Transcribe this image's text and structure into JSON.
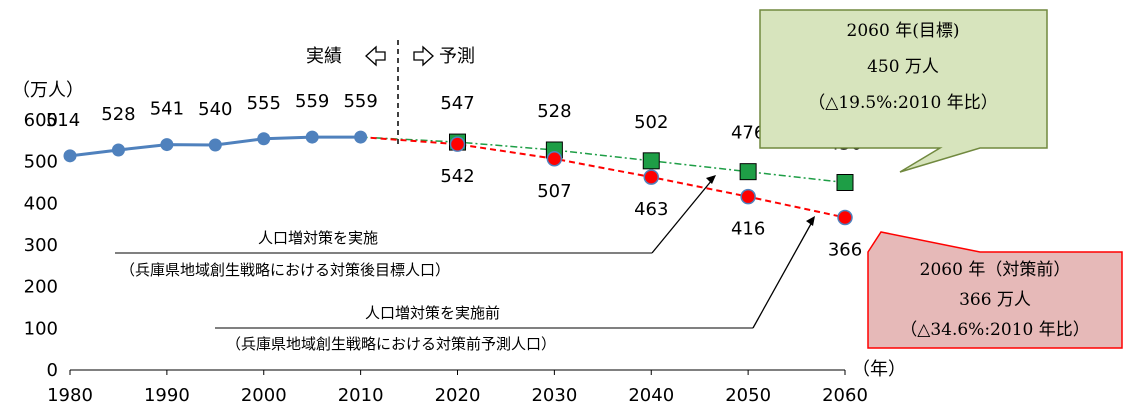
{
  "chart_data": {
    "type": "line",
    "ylabel": "（万人）",
    "xlabel": "（年）",
    "ylim": [
      0,
      600
    ],
    "xlim": [
      1980,
      2060
    ],
    "x_ticks": [
      "1980",
      "1990",
      "2000",
      "2010",
      "2020",
      "2030",
      "2040",
      "2050",
      "2060"
    ],
    "y_ticks": [
      "0",
      "100",
      "200",
      "300",
      "400",
      "500",
      "600"
    ],
    "grid": false,
    "divider_left": "実績",
    "divider_right": "予測",
    "series": [
      {
        "key": "actual",
        "color": "#4f81bd",
        "points": [
          {
            "x": 1980,
            "y": 514
          },
          {
            "x": 1985,
            "y": 528
          },
          {
            "x": 1990,
            "y": 541
          },
          {
            "x": 1995,
            "y": 540
          },
          {
            "x": 2000,
            "y": 555
          },
          {
            "x": 2005,
            "y": 559
          },
          {
            "x": 2010,
            "y": 559
          }
        ]
      },
      {
        "key": "target",
        "color": "#1e9e46",
        "points": [
          {
            "x": 2020,
            "y": 547
          },
          {
            "x": 2030,
            "y": 528
          },
          {
            "x": 2040,
            "y": 502
          },
          {
            "x": 2050,
            "y": 476
          },
          {
            "x": 2060,
            "y": 450
          }
        ]
      },
      {
        "key": "before",
        "color": "#ff0000",
        "points": [
          {
            "x": 2020,
            "y": 542
          },
          {
            "x": 2030,
            "y": 507
          },
          {
            "x": 2040,
            "y": 463
          },
          {
            "x": 2050,
            "y": 416
          },
          {
            "x": 2060,
            "y": 366
          }
        ]
      }
    ],
    "annotations": {
      "target_line1": "人口増対策を実施",
      "target_line2": "（兵庫県地域創生戦略における対策後目標人口）",
      "before_line1": "人口増対策を実施前",
      "before_line2": "（兵庫県地域創生戦略における対策前予測人口）"
    },
    "callouts": {
      "green": {
        "line1": "2060 年(目標)",
        "line2": "450 万人",
        "line3": "（△19.5%:2010 年比）",
        "fill": "#d7e4bd",
        "stroke": "#71893f"
      },
      "red": {
        "line1": "2060 年（対策前）",
        "line2": "366 万人",
        "line3": "（△34.6%:2010 年比）",
        "fill": "#e6b9b8",
        "stroke": "#ff0000"
      }
    }
  }
}
